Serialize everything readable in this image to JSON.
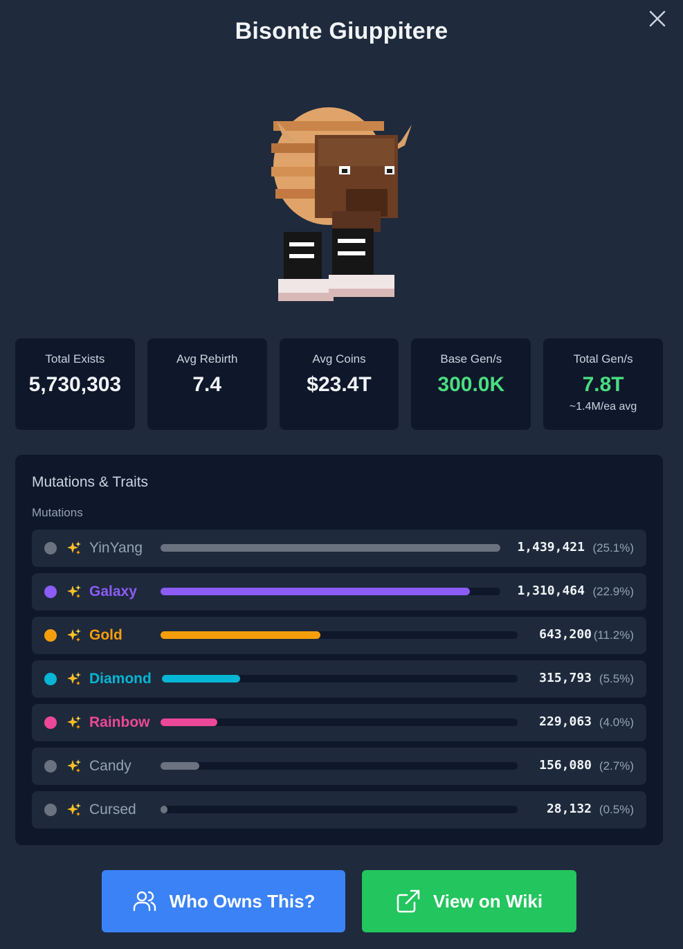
{
  "modal": {
    "title": "Bisonte Giuppitere"
  },
  "stats": [
    {
      "label": "Total Exists",
      "value": "5,730,303",
      "sub": "",
      "accent": "#f1f5f9"
    },
    {
      "label": "Avg Rebirth",
      "value": "7.4",
      "sub": "",
      "accent": "#f1f5f9"
    },
    {
      "label": "Avg Coins",
      "value": "$23.4T",
      "sub": "",
      "accent": "#f1f5f9"
    },
    {
      "label": "Base Gen/s",
      "value": "300.0K",
      "sub": "",
      "accent": "#4ade80"
    },
    {
      "label": "Total Gen/s",
      "value": "7.8T",
      "sub": "~1.4M/ea avg",
      "accent": "#4ade80"
    }
  ],
  "traits": {
    "title": "Mutations & Traits",
    "section": "Mutations",
    "mutations": [
      {
        "name": "YinYang",
        "count": "1,439,421",
        "pct": "(25.1%)",
        "fraction": 1.0,
        "color": "#6b7280",
        "dot": "#6b7280"
      },
      {
        "name": "Galaxy",
        "count": "1,310,464",
        "pct": "(22.9%)",
        "fraction": 0.91,
        "color": "#8b5cf6",
        "dot": "#8b5cf6"
      },
      {
        "name": "Gold",
        "count": "643,200",
        "pct": "(11.2%)",
        "fraction": 0.447,
        "color": "#f59e0b",
        "dot": "#f59e0b"
      },
      {
        "name": "Diamond",
        "count": "315,793",
        "pct": "(5.5%)",
        "fraction": 0.219,
        "color": "#06b6d4",
        "dot": "#06b6d4"
      },
      {
        "name": "Rainbow",
        "count": "229,063",
        "pct": "(4.0%)",
        "fraction": 0.159,
        "color": "#ec4899",
        "dot": "#ec4899"
      },
      {
        "name": "Candy",
        "count": "156,080",
        "pct": "(2.7%)",
        "fraction": 0.108,
        "color": "#6b7280",
        "dot": "#6b7280"
      },
      {
        "name": "Cursed",
        "count": "28,132",
        "pct": "(0.5%)",
        "fraction": 0.02,
        "color": "#6b7280",
        "dot": "#6b7280"
      }
    ]
  },
  "buttons": {
    "who_owns": "Who Owns This?",
    "view_wiki": "View on Wiki"
  },
  "icons": {
    "close": "close-icon",
    "users": "users-icon",
    "external": "external-link-icon",
    "sparkle": "sparkles-icon"
  }
}
